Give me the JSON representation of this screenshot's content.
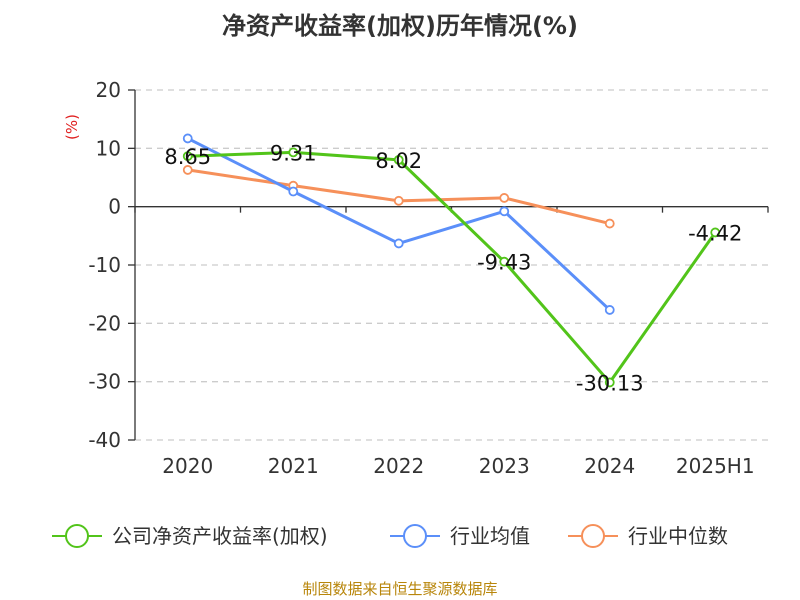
{
  "title": "净资产收益率(加权)历年情况(%)",
  "source": "制图数据来自恒生聚源数据库",
  "colors": {
    "company": "#52c41a",
    "industry_avg": "#5b8ff9",
    "industry_median": "#f6905a",
    "grid": "#cccccc",
    "axis": "#333333",
    "unit_label": "#e02020"
  },
  "chart_data": {
    "type": "line",
    "title": "净资产收益率(加权)历年情况(%)",
    "ylabel": "(%)",
    "xlabel": "",
    "categories": [
      "2020",
      "2021",
      "2022",
      "2023",
      "2024",
      "2025H1"
    ],
    "ylim": [
      -40,
      20
    ],
    "yticks": [
      20,
      10,
      0,
      -10,
      -20,
      -30,
      -40
    ],
    "grid": true,
    "legend_position": "bottom",
    "series": [
      {
        "name": "公司净资产收益率(加权)",
        "key": "company",
        "values": [
          8.65,
          9.31,
          8.02,
          -9.43,
          -30.13,
          -4.42
        ],
        "labels": [
          "8.65",
          "9.31",
          "8.02",
          "-9.43",
          "-30.13",
          "-4.42"
        ]
      },
      {
        "name": "行业均值",
        "key": "industry_avg",
        "values": [
          11.7,
          2.6,
          -6.3,
          -0.8,
          -17.7,
          null
        ]
      },
      {
        "name": "行业中位数",
        "key": "industry_median",
        "values": [
          6.3,
          3.6,
          1.0,
          1.5,
          -2.9,
          null
        ]
      }
    ]
  }
}
